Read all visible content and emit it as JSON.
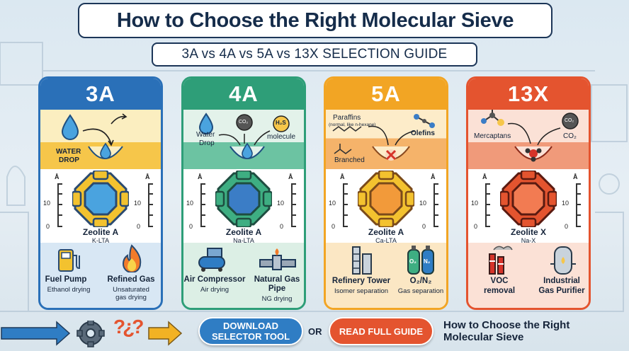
{
  "header": {
    "title": "How to Choose the Right Molecular Sieve",
    "subtitle": "3A vs 4A vs 5A vs 13X SELECTION GUIDE"
  },
  "colors": {
    "card_3a": "#2a70b8",
    "card_4a": "#2e9e78",
    "card_5a": "#f2a524",
    "card_13x": "#e4542f",
    "download_button": "#2f7dc4",
    "guide_button": "#e4542f"
  },
  "cards": [
    {
      "label": "3A",
      "molecules": {
        "m1": "WATER",
        "m2": "DROP"
      },
      "ruler": {
        "unit": "Å",
        "mid": "10",
        "zero": "0"
      },
      "zeolite": "Zeolite A",
      "framework": "K-LTA",
      "apps": [
        {
          "name": "Fuel Pump",
          "desc": "Ethanol drying",
          "icon": "fuel-pump-icon"
        },
        {
          "name": "Refined Gas",
          "desc": "Unsaturated gas drying",
          "desc1": "Unsaturated",
          "desc2": "gas drying",
          "icon": "flame-icon"
        }
      ]
    },
    {
      "label": "4A",
      "molecules": {
        "water1": "Water",
        "water2": "Drop",
        "co2": "CO₂",
        "h2s": "H₂S",
        "molecule": "molecule"
      },
      "ruler": {
        "unit": "Å",
        "mid": "10",
        "zero": "0"
      },
      "zeolite": "Zeolite A",
      "framework": "Na-LTA",
      "apps": [
        {
          "name": "Air Compressor",
          "desc": "Air drying",
          "icon": "air-compressor-icon"
        },
        {
          "name": "Natural Gas Pipe",
          "name1": "Natural Gas",
          "name2": "Pipe",
          "desc": "NG drying",
          "icon": "gas-pipe-icon"
        }
      ]
    },
    {
      "label": "5A",
      "molecules": {
        "paraffins": "Paraffins",
        "paraffins_note": "(normal, like n-hexane)",
        "olefins": "Olefins",
        "branched": "Branched"
      },
      "ruler": {
        "unit": "Å",
        "mid": "10",
        "zero": "0"
      },
      "zeolite": "Zeolite A",
      "framework": "Ca-LTA",
      "apps": [
        {
          "name": "Refinery Tower",
          "desc": "Isomer separation",
          "icon": "refinery-tower-icon"
        },
        {
          "name": "O₂/N₂",
          "desc": "Gas separation",
          "icon": "gas-cylinders-icon",
          "cyl1": "O₂",
          "cyl2": "N₂"
        }
      ]
    },
    {
      "label": "13X",
      "molecules": {
        "mercaptans": "Mercaptans",
        "co2_bubble": "CO₂",
        "co2": "CO₂"
      },
      "ruler": {
        "unit": "Å",
        "mid": "10",
        "zero": "0"
      },
      "zeolite": "Zeolite X",
      "framework": "Na-X",
      "apps": [
        {
          "name": "VOC removal",
          "name1": "VOC",
          "name2": "removal",
          "icon": "factory-icon"
        },
        {
          "name": "Industrial Gas Purifier",
          "name1": "Industrial",
          "name2": "Gas Purifier",
          "icon": "gas-purifier-icon"
        }
      ]
    }
  ],
  "footer": {
    "download_label_1": "DOWNLOAD",
    "download_label_2": "SELECTOR TOOL",
    "or": "OR",
    "guide_label": "READ FULL GUIDE",
    "title_1": "How to Choose the Right",
    "title_2": "Molecular Sieve",
    "question_marks": "?¿?"
  }
}
